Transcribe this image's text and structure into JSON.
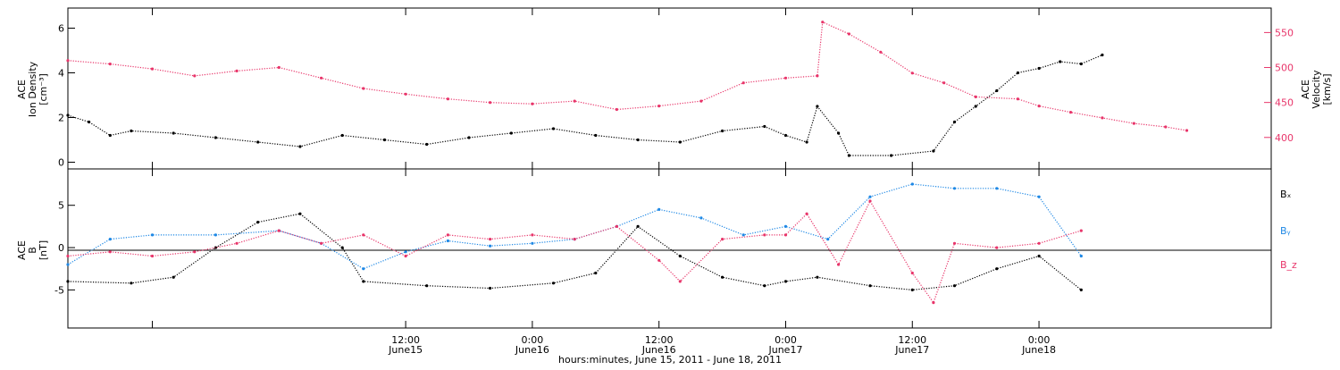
{
  "colors": {
    "black": "#000000",
    "pink": "#e8356a",
    "blue": "#1e88e5"
  },
  "xaxis": {
    "title": "hours:minutes, June 15, 2011 - June 18, 2011",
    "start": "2011-06-14T04:00",
    "end": "2011-06-18T22:00",
    "ticks": [
      {
        "t": "2011-06-14T12:00",
        "time": "",
        "date": ""
      },
      {
        "t": "2011-06-15T12:00",
        "time": "12:00",
        "date": "June15"
      },
      {
        "t": "2011-06-16T00:00",
        "time": "0:00",
        "date": "June16"
      },
      {
        "t": "2011-06-16T12:00",
        "time": "12:00",
        "date": "June16"
      },
      {
        "t": "2011-06-17T00:00",
        "time": "0:00",
        "date": "June17"
      },
      {
        "t": "2011-06-17T12:00",
        "time": "12:00",
        "date": "June17"
      },
      {
        "t": "2011-06-18T00:00",
        "time": "0:00",
        "date": "June18"
      }
    ]
  },
  "chart_data": [
    {
      "type": "scatter",
      "panel": "top",
      "ylabel_left": [
        "ACE",
        "Ion Density",
        "[cm⁻³]"
      ],
      "ylim_left": [
        -0.3,
        6.9
      ],
      "yticks_left": [
        0,
        2,
        4,
        6
      ],
      "ylabel_right": [
        "ACE",
        "Velocity",
        "[km/s]"
      ],
      "ylim_right": [
        355,
        585
      ],
      "yticks_right": [
        400,
        450,
        500,
        550
      ],
      "series": [
        {
          "name": "",
          "axis": "left",
          "color": "black",
          "points": [
            [
              "2011-06-14T04:00",
              2.1
            ],
            [
              "2011-06-14T06:00",
              1.8
            ],
            [
              "2011-06-14T08:00",
              1.2
            ],
            [
              "2011-06-14T10:00",
              1.4
            ],
            [
              "2011-06-14T14:00",
              1.3
            ],
            [
              "2011-06-14T18:00",
              1.1
            ],
            [
              "2011-06-14T22:00",
              0.9
            ],
            [
              "2011-06-15T02:00",
              0.7
            ],
            [
              "2011-06-15T06:00",
              1.2
            ],
            [
              "2011-06-15T10:00",
              1.0
            ],
            [
              "2011-06-15T14:00",
              0.8
            ],
            [
              "2011-06-15T18:00",
              1.1
            ],
            [
              "2011-06-15T22:00",
              1.3
            ],
            [
              "2011-06-16T02:00",
              1.5
            ],
            [
              "2011-06-16T06:00",
              1.2
            ],
            [
              "2011-06-16T10:00",
              1.0
            ],
            [
              "2011-06-16T14:00",
              0.9
            ],
            [
              "2011-06-16T18:00",
              1.4
            ],
            [
              "2011-06-16T22:00",
              1.6
            ],
            [
              "2011-06-17T00:00",
              1.2
            ],
            [
              "2011-06-17T02:00",
              0.9
            ],
            [
              "2011-06-17T03:00",
              2.5
            ],
            [
              "2011-06-17T05:00",
              1.3
            ],
            [
              "2011-06-17T06:00",
              0.3
            ],
            [
              "2011-06-17T10:00",
              0.3
            ],
            [
              "2011-06-17T14:00",
              0.5
            ],
            [
              "2011-06-17T16:00",
              1.8
            ],
            [
              "2011-06-17T18:00",
              2.5
            ],
            [
              "2011-06-17T20:00",
              3.2
            ],
            [
              "2011-06-17T22:00",
              4.0
            ],
            [
              "2011-06-18T00:00",
              4.2
            ],
            [
              "2011-06-18T02:00",
              4.5
            ],
            [
              "2011-06-18T04:00",
              4.4
            ],
            [
              "2011-06-18T06:00",
              4.8
            ]
          ]
        },
        {
          "name": "",
          "axis": "right",
          "color": "pink",
          "points": [
            [
              "2011-06-14T04:00",
              510
            ],
            [
              "2011-06-14T08:00",
              505
            ],
            [
              "2011-06-14T12:00",
              498
            ],
            [
              "2011-06-14T16:00",
              488
            ],
            [
              "2011-06-14T20:00",
              495
            ],
            [
              "2011-06-15T00:00",
              500
            ],
            [
              "2011-06-15T04:00",
              485
            ],
            [
              "2011-06-15T08:00",
              470
            ],
            [
              "2011-06-15T12:00",
              462
            ],
            [
              "2011-06-15T16:00",
              455
            ],
            [
              "2011-06-15T20:00",
              450
            ],
            [
              "2011-06-16T00:00",
              448
            ],
            [
              "2011-06-16T04:00",
              452
            ],
            [
              "2011-06-16T08:00",
              440
            ],
            [
              "2011-06-16T12:00",
              445
            ],
            [
              "2011-06-16T16:00",
              452
            ],
            [
              "2011-06-16T20:00",
              478
            ],
            [
              "2011-06-17T00:00",
              485
            ],
            [
              "2011-06-17T03:00",
              488
            ],
            [
              "2011-06-17T03:30",
              565
            ],
            [
              "2011-06-17T06:00",
              548
            ],
            [
              "2011-06-17T09:00",
              522
            ],
            [
              "2011-06-17T12:00",
              492
            ],
            [
              "2011-06-17T15:00",
              478
            ],
            [
              "2011-06-17T18:00",
              458
            ],
            [
              "2011-06-17T22:00",
              455
            ],
            [
              "2011-06-18T00:00",
              445
            ],
            [
              "2011-06-18T03:00",
              436
            ],
            [
              "2011-06-18T06:00",
              428
            ],
            [
              "2011-06-18T09:00",
              420
            ],
            [
              "2011-06-18T12:00",
              415
            ],
            [
              "2011-06-18T14:00",
              410
            ]
          ]
        }
      ]
    },
    {
      "type": "scatter",
      "panel": "bottom",
      "ylabel_left": [
        "ACE",
        "B",
        "[nT]"
      ],
      "ylim_left": [
        -9.5,
        9.3
      ],
      "yticks_left": [
        -5,
        0,
        5
      ],
      "legend_position": "right",
      "series": [
        {
          "name": "Bₓ",
          "color": "black",
          "points": [
            [
              "2011-06-14T04:00",
              -4.0
            ],
            [
              "2011-06-14T10:00",
              -4.2
            ],
            [
              "2011-06-14T14:00",
              -3.5
            ],
            [
              "2011-06-14T18:00",
              0.0
            ],
            [
              "2011-06-14T22:00",
              3.0
            ],
            [
              "2011-06-15T02:00",
              4.0
            ],
            [
              "2011-06-15T06:00",
              0.0
            ],
            [
              "2011-06-15T08:00",
              -4.0
            ],
            [
              "2011-06-15T14:00",
              -4.5
            ],
            [
              "2011-06-15T20:00",
              -4.8
            ],
            [
              "2011-06-16T02:00",
              -4.2
            ],
            [
              "2011-06-16T06:00",
              -3.0
            ],
            [
              "2011-06-16T10:00",
              2.5
            ],
            [
              "2011-06-16T14:00",
              -1.0
            ],
            [
              "2011-06-16T18:00",
              -3.5
            ],
            [
              "2011-06-16T22:00",
              -4.5
            ],
            [
              "2011-06-17T00:00",
              -4.0
            ],
            [
              "2011-06-17T03:00",
              -3.5
            ],
            [
              "2011-06-17T08:00",
              -4.5
            ],
            [
              "2011-06-17T12:00",
              -5.0
            ],
            [
              "2011-06-17T16:00",
              -4.5
            ],
            [
              "2011-06-17T20:00",
              -2.5
            ],
            [
              "2011-06-18T00:00",
              -1.0
            ],
            [
              "2011-06-18T04:00",
              -5.0
            ]
          ]
        },
        {
          "name": "Bᵧ",
          "color": "blue",
          "points": [
            [
              "2011-06-14T04:00",
              -2.0
            ],
            [
              "2011-06-14T08:00",
              1.0
            ],
            [
              "2011-06-14T12:00",
              1.5
            ],
            [
              "2011-06-14T18:00",
              1.5
            ],
            [
              "2011-06-15T00:00",
              2.0
            ],
            [
              "2011-06-15T04:00",
              0.5
            ],
            [
              "2011-06-15T08:00",
              -2.5
            ],
            [
              "2011-06-15T12:00",
              -0.5
            ],
            [
              "2011-06-15T16:00",
              0.8
            ],
            [
              "2011-06-15T20:00",
              0.2
            ],
            [
              "2011-06-16T00:00",
              0.5
            ],
            [
              "2011-06-16T04:00",
              1.0
            ],
            [
              "2011-06-16T08:00",
              2.5
            ],
            [
              "2011-06-16T12:00",
              4.5
            ],
            [
              "2011-06-16T16:00",
              3.5
            ],
            [
              "2011-06-16T20:00",
              1.5
            ],
            [
              "2011-06-17T00:00",
              2.5
            ],
            [
              "2011-06-17T04:00",
              1.0
            ],
            [
              "2011-06-17T08:00",
              6.0
            ],
            [
              "2011-06-17T12:00",
              7.5
            ],
            [
              "2011-06-17T16:00",
              7.0
            ],
            [
              "2011-06-17T20:00",
              7.0
            ],
            [
              "2011-06-18T00:00",
              6.0
            ],
            [
              "2011-06-18T04:00",
              -1.0
            ]
          ]
        },
        {
          "name": "B_z",
          "color": "pink",
          "points": [
            [
              "2011-06-14T04:00",
              -1.0
            ],
            [
              "2011-06-14T08:00",
              -0.5
            ],
            [
              "2011-06-14T12:00",
              -1.0
            ],
            [
              "2011-06-14T16:00",
              -0.5
            ],
            [
              "2011-06-14T20:00",
              0.5
            ],
            [
              "2011-06-15T00:00",
              2.0
            ],
            [
              "2011-06-15T04:00",
              0.5
            ],
            [
              "2011-06-15T08:00",
              1.5
            ],
            [
              "2011-06-15T12:00",
              -1.0
            ],
            [
              "2011-06-15T16:00",
              1.5
            ],
            [
              "2011-06-15T20:00",
              1.0
            ],
            [
              "2011-06-16T00:00",
              1.5
            ],
            [
              "2011-06-16T04:00",
              1.0
            ],
            [
              "2011-06-16T08:00",
              2.5
            ],
            [
              "2011-06-16T12:00",
              -1.5
            ],
            [
              "2011-06-16T14:00",
              -4.0
            ],
            [
              "2011-06-16T18:00",
              1.0
            ],
            [
              "2011-06-16T22:00",
              1.5
            ],
            [
              "2011-06-17T00:00",
              1.5
            ],
            [
              "2011-06-17T02:00",
              4.0
            ],
            [
              "2011-06-17T05:00",
              -2.0
            ],
            [
              "2011-06-17T08:00",
              5.5
            ],
            [
              "2011-06-17T12:00",
              -3.0
            ],
            [
              "2011-06-17T14:00",
              -6.5
            ],
            [
              "2011-06-17T16:00",
              0.5
            ],
            [
              "2011-06-17T20:00",
              0.0
            ],
            [
              "2011-06-18T00:00",
              0.5
            ],
            [
              "2011-06-18T04:00",
              2.0
            ]
          ]
        }
      ]
    }
  ]
}
